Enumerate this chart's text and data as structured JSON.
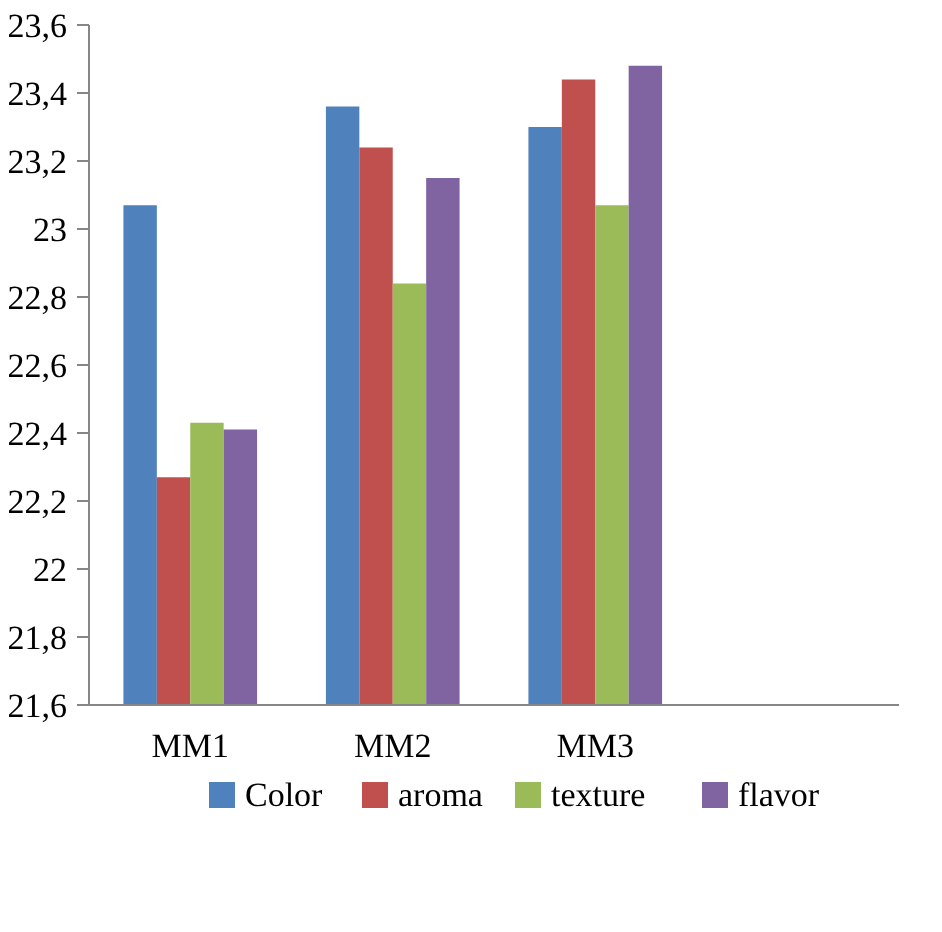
{
  "chart_data": {
    "type": "bar",
    "categories": [
      "MM1",
      "MM2",
      "MM3",
      null
    ],
    "series": [
      {
        "name": "Color",
        "color": "#4f81bd",
        "values": [
          23.07,
          23.36,
          23.3,
          null
        ]
      },
      {
        "name": "aroma",
        "color": "#c0504d",
        "values": [
          22.27,
          23.24,
          23.44,
          null
        ]
      },
      {
        "name": "texture",
        "color": "#9bbb59",
        "values": [
          22.43,
          22.84,
          23.07,
          null
        ]
      },
      {
        "name": "flavor",
        "color": "#8064a2",
        "values": [
          22.41,
          23.15,
          23.48,
          null
        ]
      }
    ],
    "ylim": [
      21.6,
      23.6
    ],
    "yticks": [
      {
        "value": 21.6,
        "label": "21,6"
      },
      {
        "value": 21.8,
        "label": "21,8"
      },
      {
        "value": 22,
        "label": "22"
      },
      {
        "value": 22.2,
        "label": "22,2"
      },
      {
        "value": 22.4,
        "label": "22,4"
      },
      {
        "value": 22.6,
        "label": "22,6"
      },
      {
        "value": 22.8,
        "label": "22,8"
      },
      {
        "value": 23,
        "label": "23"
      },
      {
        "value": 23.2,
        "label": "23,2"
      },
      {
        "value": 23.4,
        "label": "23,4"
      },
      {
        "value": 23.6,
        "label": "23,6"
      }
    ],
    "grid": false,
    "legend": "bottom"
  }
}
